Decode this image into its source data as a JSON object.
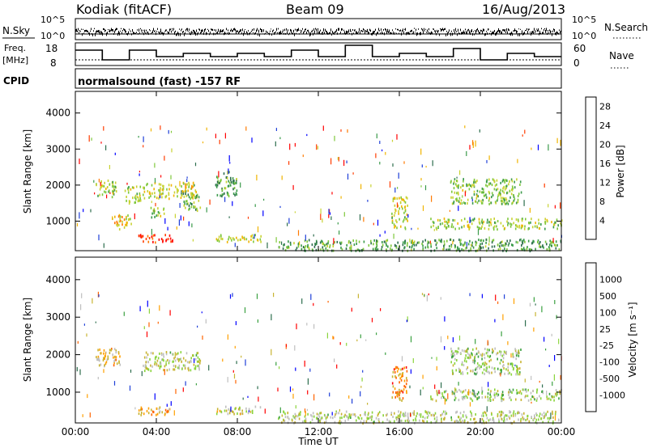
{
  "header": {
    "station": "Kodiak (fitACF)",
    "beam": "Beam 09",
    "date": "16/Aug/2013",
    "program": "normalsound (fast) -157 RF"
  },
  "labels": {
    "nsky": "N.Sky",
    "nsearch": "N.Search",
    "freq_top": "Freq.",
    "freq_unit": "[MHz]",
    "nave": "Nave",
    "cpid": "CPID",
    "noise_ticks_left": [
      "10^5",
      "10^0"
    ],
    "noise_ticks_right": [
      "10^5",
      "10^0"
    ],
    "freq_ticks": [
      "18",
      "8"
    ],
    "nave_ticks": [
      "60",
      "0"
    ]
  },
  "chart_data": [
    {
      "type": "heatmap",
      "name": "power",
      "xlabel": "Time UT",
      "ylabel": "Slant Range [km]",
      "x_ticks": [
        "00:00",
        "04:00",
        "08:00",
        "12:00",
        "16:00",
        "20:00",
        "00:00"
      ],
      "xlim_hours": [
        0,
        24
      ],
      "y_ticks": [
        1000,
        2000,
        3000,
        4000
      ],
      "ylim": [
        180,
        4600
      ],
      "colorbar": {
        "label": "Power [dB]",
        "ticks": [
          4,
          8,
          12,
          16,
          20,
          24,
          28
        ],
        "range": [
          0,
          30
        ],
        "colors": [
          "#0000ff",
          "#1f3fd8",
          "#2e6e4e",
          "#3a9a4a",
          "#7fc83c",
          "#c8d232",
          "#f0b400",
          "#ff7a00",
          "#ff3c00",
          "#ff0000"
        ]
      },
      "echo_regions": [
        {
          "t": [
            1.0,
            2.0
          ],
          "r": [
            1700,
            2200
          ],
          "level": 0.5
        },
        {
          "t": [
            1.8,
            2.8
          ],
          "r": [
            800,
            1200
          ],
          "level": 0.6
        },
        {
          "t": [
            2.4,
            3.2
          ],
          "r": [
            1500,
            2000
          ],
          "level": 0.5
        },
        {
          "t": [
            3.1,
            4.8
          ],
          "r": [
            420,
            650
          ],
          "level": 0.95
        },
        {
          "t": [
            3.3,
            6.0
          ],
          "r": [
            1650,
            2100
          ],
          "level": 0.55
        },
        {
          "t": [
            3.7,
            4.4
          ],
          "r": [
            1100,
            1400
          ],
          "level": 0.5
        },
        {
          "t": [
            5.3,
            6.2
          ],
          "r": [
            1300,
            1800
          ],
          "level": 0.4
        },
        {
          "t": [
            6.9,
            9.2
          ],
          "r": [
            450,
            650
          ],
          "level": 0.55
        },
        {
          "t": [
            6.9,
            8.0
          ],
          "r": [
            1700,
            2400
          ],
          "level": 0.35
        },
        {
          "t": [
            15.6,
            16.4
          ],
          "r": [
            800,
            1700
          ],
          "level": 0.55
        },
        {
          "t": [
            17.5,
            24.0
          ],
          "r": [
            800,
            1100
          ],
          "level": 0.5
        },
        {
          "t": [
            18.5,
            22.0
          ],
          "r": [
            1500,
            2200
          ],
          "level": 0.45
        },
        {
          "t": [
            10.0,
            24.0
          ],
          "r": [
            200,
            520
          ],
          "level": 0.35
        }
      ]
    },
    {
      "type": "heatmap",
      "name": "velocity",
      "xlabel": "Time UT",
      "ylabel": "Slant Range [km]",
      "x_ticks": [
        "00:00",
        "04:00",
        "08:00",
        "12:00",
        "16:00",
        "20:00",
        "00:00"
      ],
      "xlim_hours": [
        0,
        24
      ],
      "y_ticks": [
        1000,
        2000,
        3000,
        4000
      ],
      "ylim": [
        180,
        4600
      ],
      "colorbar": {
        "label": "Velocity [m s⁻¹]",
        "ticks": [
          "1000",
          "500",
          "100",
          "25",
          "-25",
          "-100",
          "-500",
          "-1000"
        ],
        "colors": [
          "#0000ff",
          "#1f3fd8",
          "#2e6e4e",
          "#3aa040",
          "#8ad43c",
          "#bfbfbf",
          "#c8b432",
          "#ffa000",
          "#ff6400",
          "#ff0000"
        ]
      },
      "echo_regions": [
        {
          "t": [
            1.0,
            2.2
          ],
          "r": [
            1700,
            2200
          ],
          "level": 0.7
        },
        {
          "t": [
            3.1,
            4.8
          ],
          "r": [
            420,
            650
          ],
          "level": 0.72
        },
        {
          "t": [
            3.3,
            6.2
          ],
          "r": [
            1600,
            2100
          ],
          "level": 0.55
        },
        {
          "t": [
            6.9,
            9.2
          ],
          "r": [
            450,
            650
          ],
          "level": 0.6
        },
        {
          "t": [
            15.6,
            16.4
          ],
          "r": [
            800,
            1700
          ],
          "level": 0.8
        },
        {
          "t": [
            17.5,
            24.0
          ],
          "r": [
            800,
            1100
          ],
          "level": 0.5
        },
        {
          "t": [
            18.5,
            22.0
          ],
          "r": [
            1500,
            2200
          ],
          "level": 0.5
        },
        {
          "t": [
            10.0,
            24.0
          ],
          "r": [
            200,
            520
          ],
          "level": 0.55
        }
      ]
    }
  ],
  "colors": {
    "axis": "#000000",
    "background": "#ffffff"
  }
}
